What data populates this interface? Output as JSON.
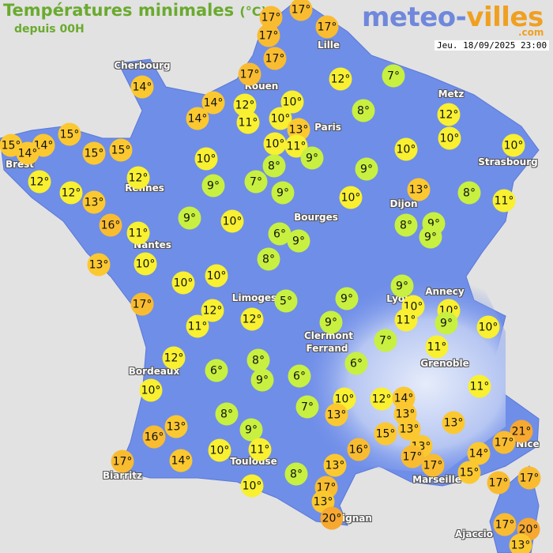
{
  "header": {
    "title": "Températures minimales",
    "unit": "(°C)",
    "subtitle": "depuis 00H",
    "logo_part1": "meteo-",
    "logo_part2": "villes",
    "logo_suffix": ".com",
    "datetime": "Jeu. 18/09/2025 23:00"
  },
  "colors": {
    "background": "#e2e2e2",
    "land": "#6f8ee8",
    "green": "#c8f040",
    "yellow": "#f8f030",
    "gold": "#fcc830",
    "orange": "#f6a830",
    "title": "#6aaa2e"
  },
  "cities": [
    "Cherbourg",
    "Lille",
    "Rouen",
    "Paris",
    "Metz",
    "Strasbourg",
    "Brest",
    "Rennes",
    "Dijon",
    "Bourges",
    "Nantes",
    "Limoges",
    "Lyon",
    "Annecy",
    "Clermont",
    "Ferrand",
    "Grenoble",
    "Bordeaux",
    "Biarritz",
    "Toulouse",
    "Marseille",
    "Nice",
    "ignan",
    "Ajaccio"
  ],
  "temperature_unit": "°",
  "temperatures": [
    17,
    17,
    17,
    17,
    17,
    17,
    7,
    12,
    14,
    14,
    12,
    10,
    14,
    11,
    10,
    13,
    8,
    12,
    10,
    15,
    15,
    14,
    14,
    15,
    15,
    10,
    11,
    9,
    10,
    8,
    10,
    10,
    9,
    12,
    12,
    12,
    13,
    9,
    7,
    9,
    10,
    13,
    8,
    11,
    16,
    9,
    10,
    6,
    9,
    8,
    9,
    9,
    11,
    13,
    10,
    8,
    10,
    10,
    17,
    5,
    9,
    9,
    10,
    10,
    11,
    9,
    10,
    12,
    11,
    12,
    9,
    7,
    11,
    12,
    6,
    8,
    9,
    6,
    6,
    10,
    11,
    7,
    10,
    13,
    12,
    14,
    13,
    8,
    13,
    15,
    13,
    13,
    21,
    9,
    16,
    17,
    13,
    17,
    17,
    14,
    16,
    10,
    11,
    14,
    17,
    13,
    15,
    17,
    17,
    8,
    17,
    10,
    13,
    20,
    17,
    20,
    13
  ]
}
